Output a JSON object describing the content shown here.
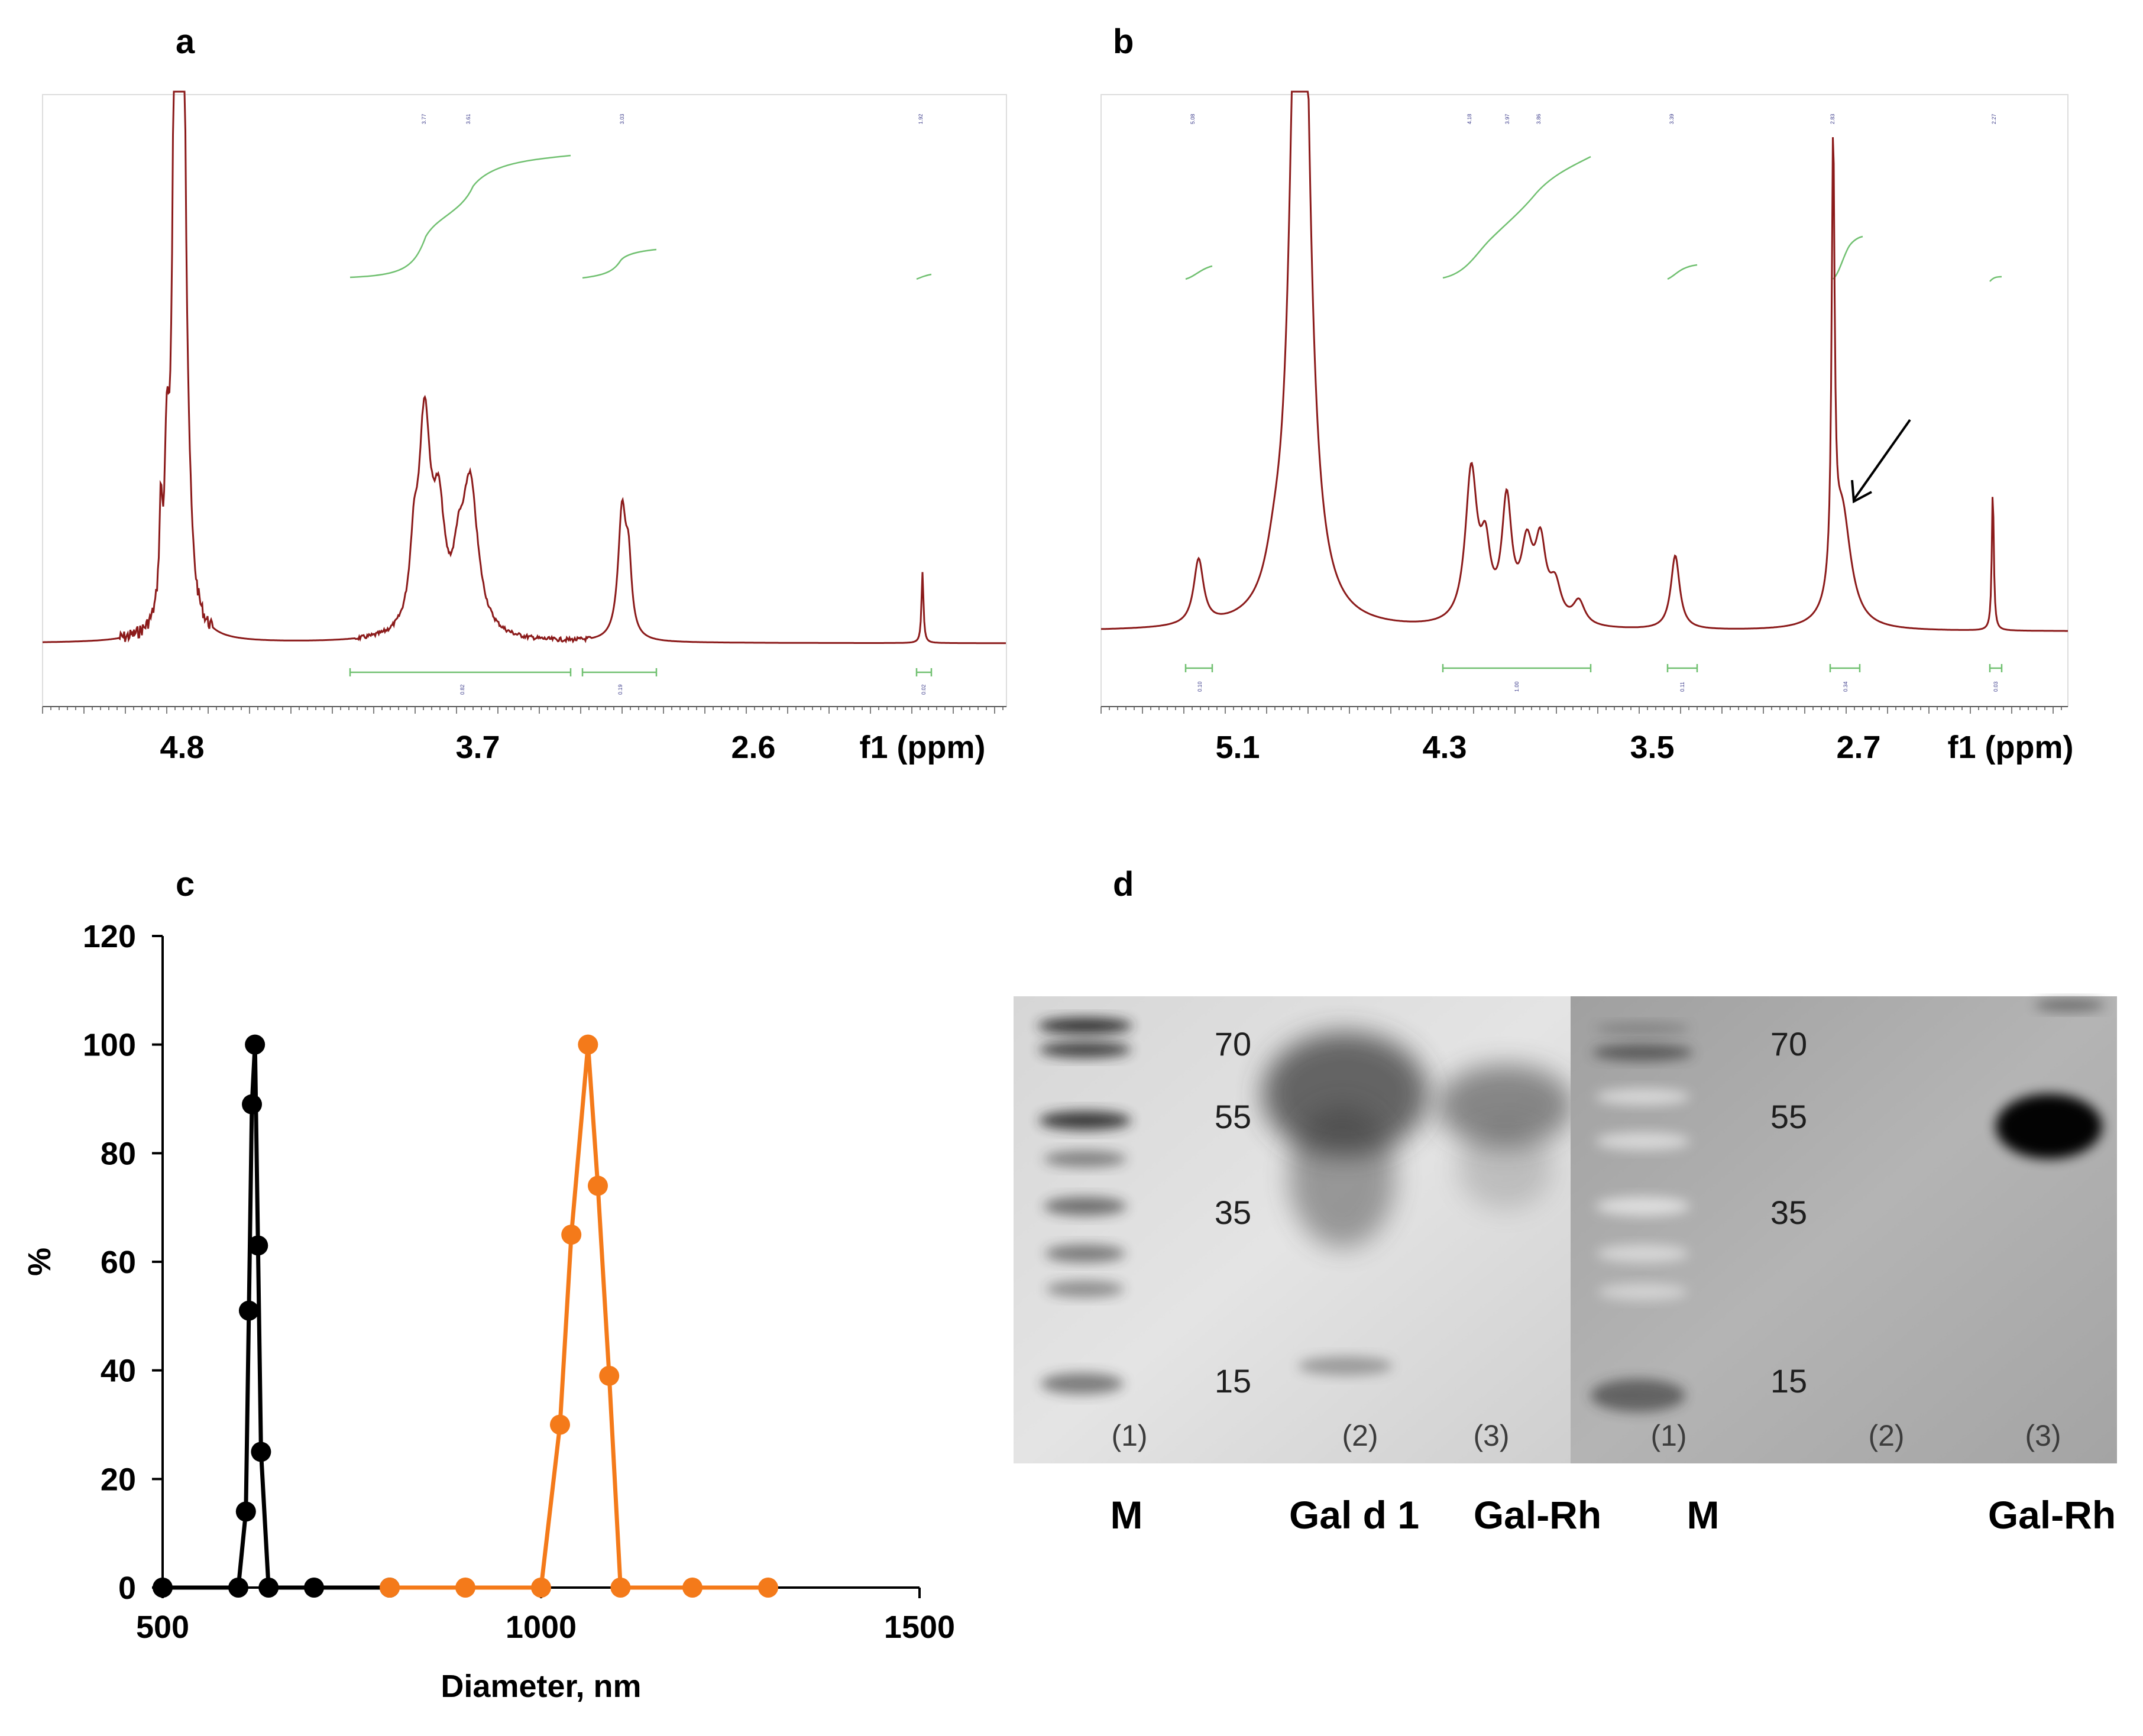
{
  "panels": {
    "a": {
      "letter": "a",
      "x_ticks": [
        "4.8",
        "3.7",
        "2.6"
      ],
      "axis_label": "f1 (ppm)",
      "peak_labels": [
        "3.77",
        "3.61",
        "3.03",
        "1.92"
      ],
      "integrals": [
        "0.82",
        "0.19",
        "0.02"
      ]
    },
    "b": {
      "letter": "b",
      "x_ticks": [
        "5.1",
        "4.3",
        "3.5",
        "2.7"
      ],
      "axis_label": "f1 (ppm)",
      "peak_labels": [
        "5.08",
        "4.18",
        "3.97",
        "3.86",
        "3.39",
        "2.83",
        "2.27"
      ],
      "integrals": [
        "0.10",
        "1.00",
        "0.11",
        "0.34",
        "0.03"
      ]
    },
    "c": {
      "letter": "c"
    },
    "d": {
      "letter": "d",
      "left_markers": [
        "70",
        "55",
        "35",
        "15"
      ],
      "right_markers": [
        "70",
        "55",
        "35",
        "15"
      ],
      "left_lane_numbers": [
        "(1)",
        "(2)",
        "(3)"
      ],
      "right_lane_numbers": [
        "(1)",
        "(2)",
        "(3)"
      ],
      "lane_labels": [
        "M",
        "Gal d 1",
        "Gal-Rh",
        "M",
        "Gal-Rh"
      ]
    }
  },
  "chart_data": {
    "type": "line",
    "title": "",
    "xlabel": "Diameter, nm",
    "ylabel": "%",
    "xlim": [
      500,
      1500
    ],
    "ylim": [
      0,
      120
    ],
    "x_ticks": [
      "500",
      "1000",
      "1500"
    ],
    "y_ticks": [
      "0",
      "20",
      "40",
      "60",
      "80",
      "100",
      "120"
    ],
    "series": [
      {
        "name": "black",
        "color": "#000000",
        "x": [
          500,
          600,
          610,
          614,
          618,
          622,
          626,
          630,
          640,
          700,
          800
        ],
        "y": [
          0,
          0,
          14,
          51,
          89,
          100,
          63,
          25,
          0,
          0,
          0
        ]
      },
      {
        "name": "orange",
        "color": "#f47a1a",
        "x": [
          800,
          900,
          1000,
          1025,
          1040,
          1062,
          1075,
          1090,
          1105,
          1200,
          1300
        ],
        "y": [
          0,
          0,
          0,
          30,
          65,
          100,
          74,
          39,
          0,
          0,
          0
        ]
      }
    ]
  }
}
